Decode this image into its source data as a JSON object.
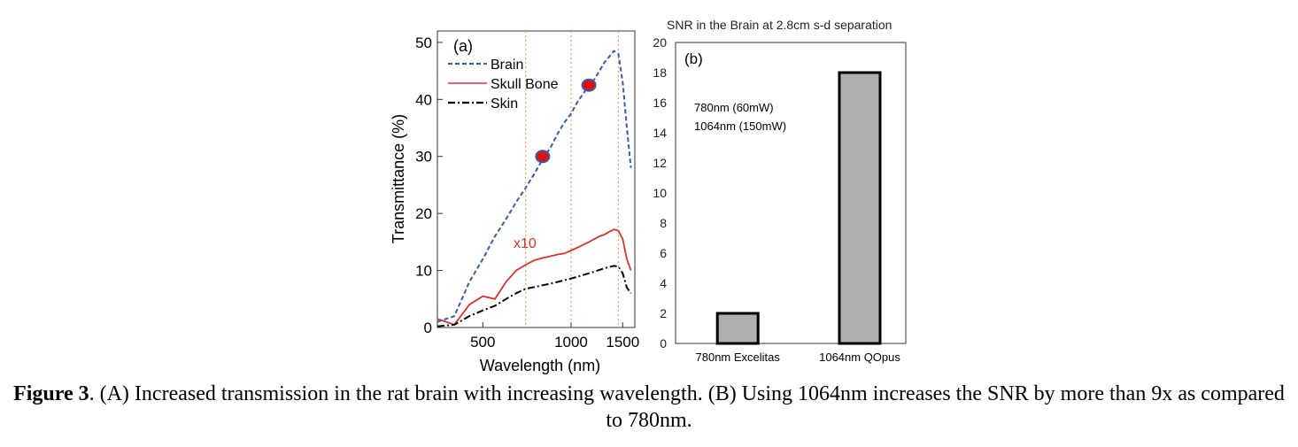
{
  "chart_data": [
    {
      "type": "line",
      "panel_label": "(a)",
      "xlabel": "Wavelength (nm)",
      "ylabel": "Transmittance (%)",
      "xscale": "log",
      "xlim": [
        350,
        1650
      ],
      "ylim": [
        0,
        52
      ],
      "xticks": [
        {
          "value": 500,
          "label": "500"
        },
        {
          "value": 1000,
          "label": "1000"
        },
        {
          "value": 1500,
          "label": "1500"
        }
      ],
      "yticks": [
        {
          "value": 0,
          "label": "0"
        },
        {
          "value": 10,
          "label": "10"
        },
        {
          "value": 20,
          "label": "20"
        },
        {
          "value": 30,
          "label": "30"
        },
        {
          "value": 40,
          "label": "40"
        },
        {
          "value": 50,
          "label": "50"
        }
      ],
      "vlines": [
        700,
        1000,
        1450
      ],
      "legend_position": "top-left",
      "annotation": "x10",
      "series": [
        {
          "name": "Brain",
          "style": "dashed",
          "color": "#3a5ba8",
          "x": [
            350,
            400,
            450,
            500,
            550,
            600,
            650,
            700,
            750,
            800,
            850,
            900,
            950,
            1000,
            1050,
            1100,
            1150,
            1200,
            1250,
            1300,
            1350,
            1400,
            1450,
            1500,
            1550,
            1600
          ],
          "y": [
            1,
            2,
            8,
            12,
            16,
            19,
            22,
            24.5,
            27,
            29.5,
            31.5,
            34,
            36,
            37.5,
            39.5,
            41,
            42.5,
            43.5,
            45,
            46.5,
            47.5,
            48.5,
            48,
            43,
            35,
            28
          ]
        },
        {
          "name": "Skull Bone",
          "style": "solid",
          "color": "#e03030",
          "x": [
            350,
            400,
            450,
            500,
            550,
            600,
            650,
            700,
            750,
            800,
            850,
            900,
            950,
            1000,
            1050,
            1100,
            1150,
            1200,
            1250,
            1300,
            1350,
            1400,
            1450,
            1500,
            1550,
            1600
          ],
          "y": [
            1.5,
            0.5,
            4,
            5.5,
            5,
            8,
            10,
            11,
            11.8,
            12.2,
            12.5,
            12.8,
            13,
            13.5,
            14,
            14.5,
            15,
            15.5,
            16,
            16.3,
            16.8,
            17.2,
            17,
            15.5,
            12,
            10
          ]
        },
        {
          "name": "Skin",
          "style": "dashdot",
          "color": "#000000",
          "x": [
            350,
            400,
            450,
            500,
            550,
            600,
            650,
            700,
            750,
            800,
            850,
            900,
            950,
            1000,
            1050,
            1100,
            1150,
            1200,
            1250,
            1300,
            1350,
            1400,
            1450,
            1500,
            1550,
            1600
          ],
          "y": [
            0.2,
            0.5,
            2,
            3,
            3.8,
            5,
            6,
            6.8,
            7.1,
            7.4,
            7.7,
            8,
            8.3,
            8.6,
            8.9,
            9.2,
            9.5,
            9.8,
            10.1,
            10.4,
            10.6,
            10.8,
            10.7,
            9.5,
            7,
            6
          ]
        }
      ],
      "markers": [
        {
          "x": 800,
          "y": 30
        },
        {
          "x": 1150,
          "y": 42.5
        }
      ]
    },
    {
      "type": "bar",
      "panel_label": "(b)",
      "title": "SNR in the Brain at 2.8cm s-d separation",
      "categories": [
        "780nm  Excelitas",
        "1064nm  QOpus"
      ],
      "values": [
        2,
        18
      ],
      "ylim": [
        0,
        20
      ],
      "yticks": [
        0,
        2,
        4,
        6,
        8,
        10,
        12,
        14,
        16,
        18,
        20
      ],
      "annotations": [
        "780nm  (60mW)",
        "1064nm  (150mW)"
      ],
      "bar_color": "#b0aeae"
    }
  ],
  "caption": {
    "figure_label": "Figure 3",
    "text": ". (A) Increased transmission in the rat brain with increasing wavelength. (B) Using 1064nm increases the SNR by more than 9x as compared to 780nm."
  }
}
